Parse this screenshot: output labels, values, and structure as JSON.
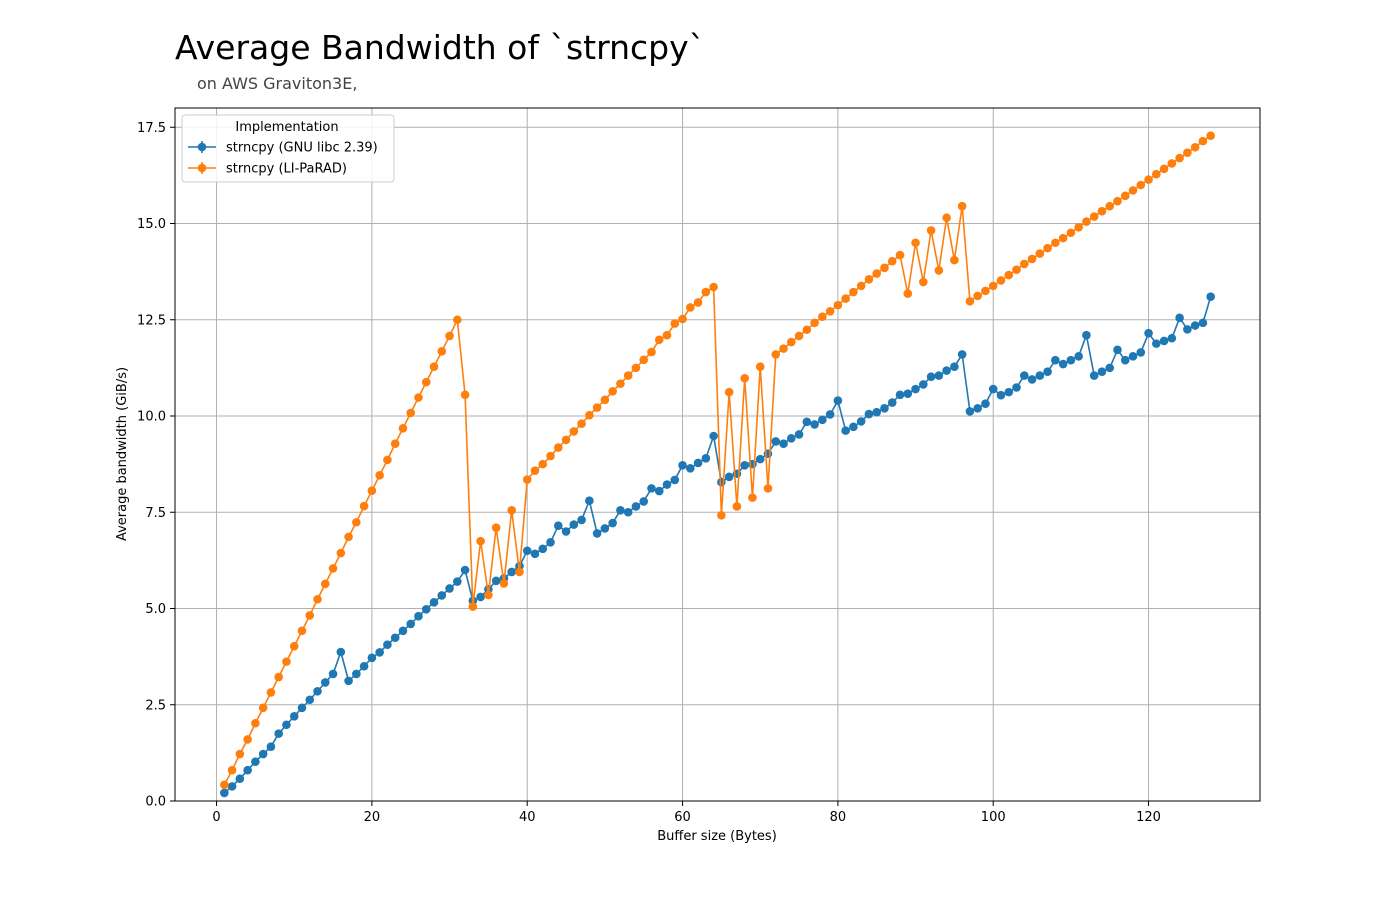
{
  "chart_data": {
    "type": "line",
    "title": "Average Bandwidth of `strncpy`",
    "subtitle": "on AWS Graviton3E,",
    "xlabel": "Buffer size (Bytes)",
    "ylabel": "Average bandwidth (GiB/s)",
    "xlim": [
      -5.35,
      134.35
    ],
    "ylim": [
      0.0,
      18.0
    ],
    "xticks": [
      0,
      20,
      40,
      60,
      80,
      100,
      120
    ],
    "yticks": [
      0.0,
      2.5,
      5.0,
      7.5,
      10.0,
      12.5,
      15.0,
      17.5
    ],
    "xtick_labels": [
      "0",
      "20",
      "40",
      "60",
      "80",
      "100",
      "120"
    ],
    "ytick_labels": [
      "0.0",
      "2.5",
      "5.0",
      "7.5",
      "10.0",
      "12.5",
      "15.0",
      "17.5"
    ],
    "grid": true,
    "markers": true,
    "legend": {
      "title": "Implementation",
      "position": "top-left"
    },
    "x_start": 1,
    "x_step": 1,
    "series": [
      {
        "name": "strncpy (GNU libc 2.39)",
        "color": "#1f77b4",
        "values": [
          0.21,
          0.38,
          0.58,
          0.8,
          1.02,
          1.22,
          1.41,
          1.75,
          1.98,
          2.2,
          2.42,
          2.63,
          2.85,
          3.08,
          3.3,
          3.87,
          3.12,
          3.3,
          3.5,
          3.72,
          3.86,
          4.06,
          4.24,
          4.42,
          4.6,
          4.8,
          4.98,
          5.16,
          5.34,
          5.52,
          5.7,
          6.0,
          5.2,
          5.3,
          5.5,
          5.72,
          5.78,
          5.95,
          6.1,
          6.5,
          6.42,
          6.55,
          6.72,
          7.15,
          7.0,
          7.18,
          7.3,
          7.8,
          6.95,
          7.08,
          7.22,
          7.55,
          7.5,
          7.65,
          7.78,
          8.12,
          8.05,
          8.22,
          8.34,
          8.72,
          8.64,
          8.78,
          8.9,
          9.48,
          8.28,
          8.42,
          8.5,
          8.72,
          8.75,
          8.88,
          9.02,
          9.34,
          9.28,
          9.42,
          9.52,
          9.85,
          9.78,
          9.9,
          10.04,
          10.4,
          9.62,
          9.72,
          9.86,
          10.05,
          10.1,
          10.2,
          10.35,
          10.55,
          10.58,
          10.7,
          10.82,
          11.02,
          11.05,
          11.18,
          11.28,
          11.6,
          10.12,
          10.2,
          10.32,
          10.7,
          10.54,
          10.62,
          10.74,
          11.05,
          10.95,
          11.05,
          11.15,
          11.45,
          11.35,
          11.45,
          11.55,
          12.1,
          11.05,
          11.15,
          11.25,
          11.72,
          11.45,
          11.55,
          11.65,
          12.15,
          11.88,
          11.95,
          12.02,
          12.55,
          12.25,
          12.35,
          12.42,
          13.1
        ]
      },
      {
        "name": "strncpy (LI-PaRAD)",
        "color": "#ff7f0e",
        "values": [
          0.42,
          0.8,
          1.22,
          1.6,
          2.02,
          2.42,
          2.82,
          3.22,
          3.62,
          4.02,
          4.42,
          4.82,
          5.24,
          5.64,
          6.04,
          6.44,
          6.86,
          7.24,
          7.66,
          8.06,
          8.46,
          8.86,
          9.28,
          9.68,
          10.08,
          10.48,
          10.88,
          11.28,
          11.68,
          12.08,
          12.5,
          10.55,
          5.05,
          6.75,
          5.35,
          7.1,
          5.65,
          7.55,
          5.95,
          8.35,
          8.58,
          8.75,
          8.96,
          9.18,
          9.38,
          9.6,
          9.8,
          10.02,
          10.22,
          10.42,
          10.64,
          10.84,
          11.05,
          11.25,
          11.46,
          11.66,
          11.98,
          12.1,
          12.4,
          12.52,
          12.82,
          12.95,
          13.22,
          13.35,
          7.42,
          10.62,
          7.65,
          10.98,
          7.88,
          11.28,
          8.12,
          11.6,
          11.75,
          11.92,
          12.08,
          12.24,
          12.42,
          12.58,
          12.72,
          12.88,
          13.05,
          13.22,
          13.38,
          13.55,
          13.7,
          13.85,
          14.02,
          14.18,
          13.18,
          14.5,
          13.48,
          14.82,
          13.78,
          15.15,
          14.05,
          15.45,
          12.98,
          13.12,
          13.25,
          13.38,
          13.52,
          13.66,
          13.8,
          13.95,
          14.08,
          14.22,
          14.36,
          14.5,
          14.62,
          14.76,
          14.9,
          15.05,
          15.18,
          15.32,
          15.45,
          15.58,
          15.72,
          15.86,
          16.0,
          16.14,
          16.28,
          16.42,
          16.56,
          16.7,
          16.84,
          16.98,
          17.14,
          17.28
        ]
      }
    ]
  }
}
